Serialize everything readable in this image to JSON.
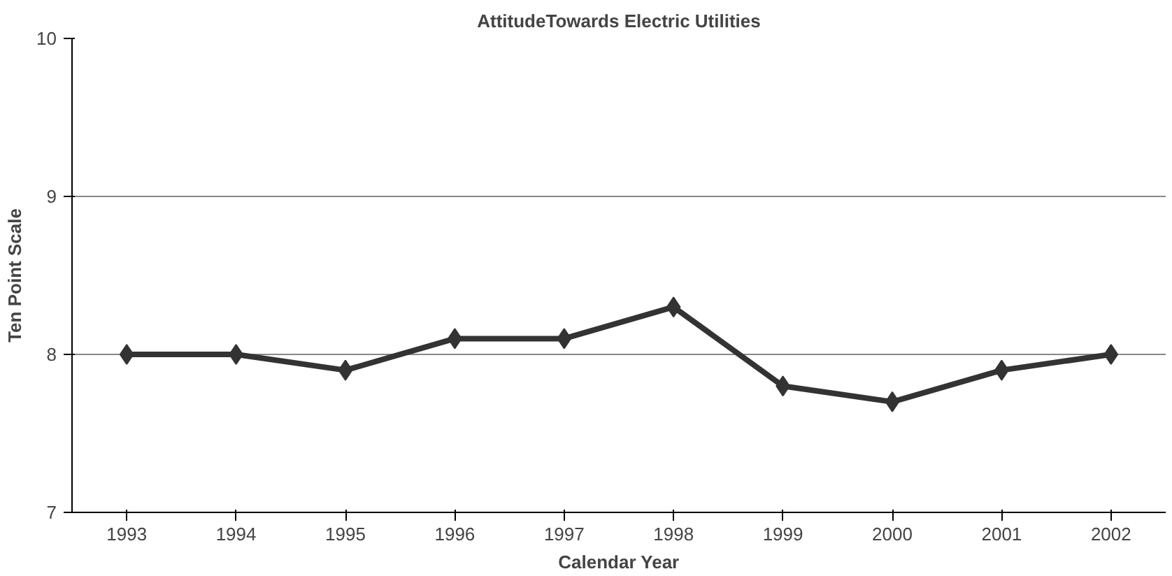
{
  "chart_data": {
    "type": "line",
    "title": "AttitudeTowards Electric Utilities",
    "xlabel": "Calendar Year",
    "ylabel": "Ten Point Scale",
    "categories": [
      "1993",
      "1994",
      "1995",
      "1996",
      "1997",
      "1998",
      "1999",
      "2000",
      "2001",
      "2002"
    ],
    "series": [
      {
        "color": "#333333",
        "values": [
          8.0,
          8.0,
          7.9,
          8.1,
          8.1,
          8.3,
          7.8,
          7.7,
          7.9,
          8.0
        ]
      }
    ],
    "ylim": [
      7,
      10
    ],
    "yticks": [
      7,
      8,
      9,
      10
    ],
    "grid": "y",
    "marker": "diamond",
    "line_style": "solid"
  }
}
